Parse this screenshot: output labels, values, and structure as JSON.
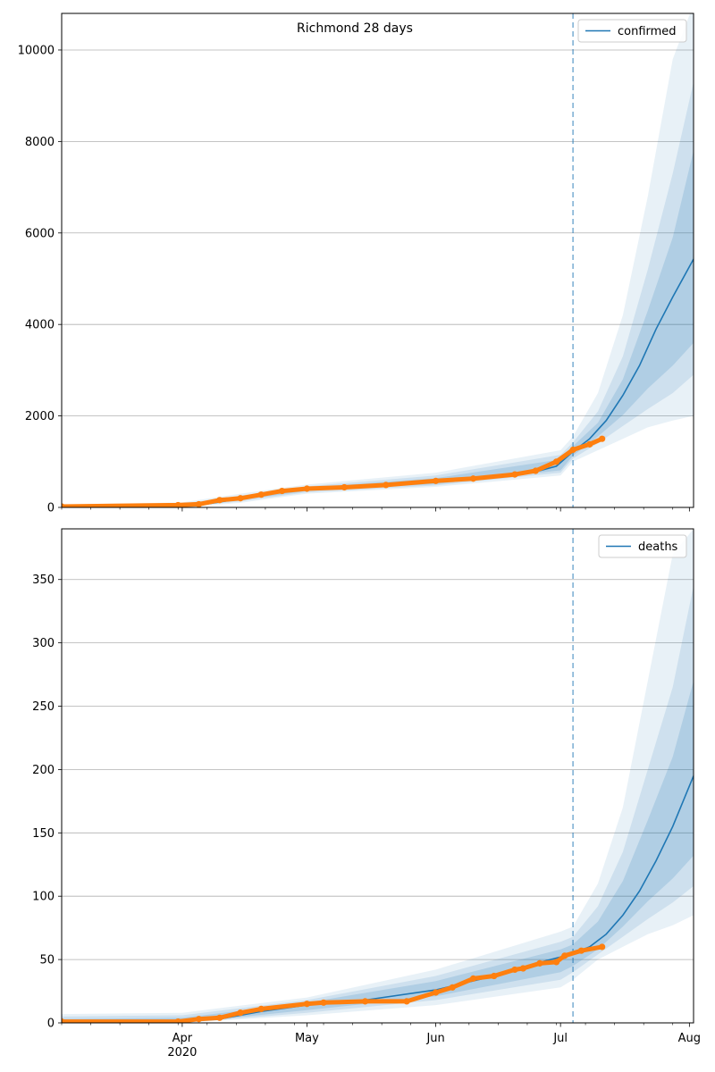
{
  "figure": {
    "title": "Richmond 28 days"
  },
  "colors": {
    "model": "#1f77b4",
    "observed": "#ff7f0e",
    "band": "#1f77b4",
    "grid": "#b0b0b0",
    "forecast_line": "#1f77b4"
  },
  "chart_data": [
    {
      "type": "line",
      "legend": {
        "label": "confirmed",
        "placement": "upper right"
      },
      "x_range": [
        "2020-03-03",
        "2020-08-02"
      ],
      "ylim": [
        0,
        10800
      ],
      "yticks": [
        0,
        2000,
        4000,
        6000,
        8000,
        10000
      ],
      "xticks": [
        {
          "date": "2020-04-01",
          "label": "Apr",
          "sublabel": "2020"
        },
        {
          "date": "2020-05-01",
          "label": "May"
        },
        {
          "date": "2020-06-01",
          "label": "Jun"
        },
        {
          "date": "2020-07-01",
          "label": "Jul"
        },
        {
          "date": "2020-08-01",
          "label": "Aug"
        }
      ],
      "forecast_start": "2020-07-04",
      "grid": true,
      "series": [
        {
          "name": "confirmed",
          "kind": "model",
          "x": [
            "2020-03-03",
            "2020-03-31",
            "2020-04-05",
            "2020-04-10",
            "2020-04-15",
            "2020-04-20",
            "2020-04-25",
            "2020-05-01",
            "2020-05-10",
            "2020-05-20",
            "2020-06-01",
            "2020-06-10",
            "2020-06-20",
            "2020-06-25",
            "2020-06-30",
            "2020-07-04",
            "2020-07-08",
            "2020-07-12",
            "2020-07-16",
            "2020-07-20",
            "2020-07-24",
            "2020-07-28",
            "2020-08-02"
          ],
          "y": [
            20,
            30,
            50,
            120,
            190,
            270,
            350,
            400,
            440,
            500,
            560,
            620,
            700,
            780,
            900,
            1220,
            1500,
            1900,
            2450,
            3100,
            3900,
            4600,
            5430
          ]
        },
        {
          "name": "",
          "kind": "observed",
          "x": [
            "2020-03-03",
            "2020-03-31",
            "2020-04-05",
            "2020-04-10",
            "2020-04-15",
            "2020-04-20",
            "2020-04-25",
            "2020-05-01",
            "2020-05-10",
            "2020-05-20",
            "2020-06-01",
            "2020-06-10",
            "2020-06-20",
            "2020-06-25",
            "2020-06-30",
            "2020-07-04",
            "2020-07-08",
            "2020-07-11"
          ],
          "y": [
            20,
            50,
            70,
            160,
            200,
            280,
            360,
            410,
            440,
            490,
            580,
            630,
            720,
            800,
            1000,
            1260,
            1380,
            1500
          ]
        }
      ],
      "bands": [
        {
          "x": [
            "2020-03-03",
            "2020-04-01",
            "2020-04-15",
            "2020-05-01",
            "2020-06-01",
            "2020-07-01",
            "2020-07-04",
            "2020-07-10",
            "2020-07-16",
            "2020-07-22",
            "2020-07-28",
            "2020-08-02"
          ],
          "lower": [
            0,
            0,
            100,
            300,
            450,
            700,
            1000,
            1250,
            1500,
            1750,
            1900,
            2000
          ],
          "upper": [
            60,
            110,
            300,
            500,
            760,
            1250,
            1550,
            2500,
            4200,
            6800,
            9800,
            11000
          ]
        },
        {
          "x": [
            "2020-03-03",
            "2020-04-01",
            "2020-04-15",
            "2020-05-01",
            "2020-06-01",
            "2020-07-01",
            "2020-07-04",
            "2020-07-10",
            "2020-07-16",
            "2020-07-22",
            "2020-07-28",
            "2020-08-02"
          ],
          "lower": [
            0,
            10,
            130,
            330,
            480,
            760,
            1070,
            1400,
            1780,
            2150,
            2500,
            2900
          ],
          "upper": [
            45,
            80,
            260,
            460,
            700,
            1150,
            1420,
            2100,
            3300,
            5200,
            7300,
            9300
          ]
        },
        {
          "x": [
            "2020-03-03",
            "2020-04-01",
            "2020-04-15",
            "2020-05-01",
            "2020-06-01",
            "2020-07-01",
            "2020-07-04",
            "2020-07-10",
            "2020-07-16",
            "2020-07-22",
            "2020-07-28",
            "2020-08-02"
          ],
          "lower": [
            5,
            20,
            160,
            360,
            510,
            810,
            1130,
            1550,
            2020,
            2600,
            3100,
            3600
          ],
          "upper": [
            35,
            60,
            220,
            430,
            640,
            1050,
            1340,
            1850,
            2800,
            4300,
            5900,
            7800
          ]
        }
      ]
    },
    {
      "type": "line",
      "legend": {
        "label": "deaths",
        "placement": "upper right"
      },
      "x_range": [
        "2020-03-03",
        "2020-08-02"
      ],
      "ylim": [
        0,
        390
      ],
      "yticks": [
        0,
        50,
        100,
        150,
        200,
        250,
        300,
        350
      ],
      "xticks": [
        {
          "date": "2020-04-01",
          "label": "Apr",
          "sublabel": "2020"
        },
        {
          "date": "2020-05-01",
          "label": "May"
        },
        {
          "date": "2020-06-01",
          "label": "Jun"
        },
        {
          "date": "2020-07-01",
          "label": "Jul"
        },
        {
          "date": "2020-08-01",
          "label": "Aug"
        }
      ],
      "forecast_start": "2020-07-04",
      "grid": true,
      "series": [
        {
          "name": "deaths",
          "kind": "model",
          "x": [
            "2020-03-03",
            "2020-03-31",
            "2020-04-10",
            "2020-04-20",
            "2020-05-01",
            "2020-05-15",
            "2020-06-01",
            "2020-06-15",
            "2020-06-25",
            "2020-07-01",
            "2020-07-04",
            "2020-07-08",
            "2020-07-12",
            "2020-07-16",
            "2020-07-20",
            "2020-07-24",
            "2020-07-28",
            "2020-08-02"
          ],
          "y": [
            1,
            1,
            3,
            9,
            14,
            18,
            26,
            37,
            47,
            52,
            55,
            60,
            70,
            85,
            104,
            128,
            155,
            195
          ]
        },
        {
          "name": "",
          "kind": "observed",
          "x": [
            "2020-03-03",
            "2020-03-31",
            "2020-04-05",
            "2020-04-10",
            "2020-04-15",
            "2020-04-20",
            "2020-05-01",
            "2020-05-05",
            "2020-05-15",
            "2020-05-25",
            "2020-06-01",
            "2020-06-05",
            "2020-06-10",
            "2020-06-15",
            "2020-06-20",
            "2020-06-22",
            "2020-06-26",
            "2020-06-30",
            "2020-07-02",
            "2020-07-06",
            "2020-07-11"
          ],
          "y": [
            1,
            1,
            3,
            4,
            8,
            11,
            15,
            16,
            17,
            17,
            24,
            28,
            35,
            37,
            42,
            43,
            47,
            48,
            53,
            57,
            60
          ]
        }
      ],
      "bands": [
        {
          "x": [
            "2020-03-03",
            "2020-04-01",
            "2020-05-01",
            "2020-06-01",
            "2020-07-01",
            "2020-07-04",
            "2020-07-10",
            "2020-07-16",
            "2020-07-22",
            "2020-07-28",
            "2020-08-02"
          ],
          "lower": [
            0,
            0,
            6,
            14,
            28,
            34,
            50,
            60,
            70,
            77,
            85
          ],
          "upper": [
            7,
            8,
            20,
            42,
            72,
            76,
            110,
            170,
            270,
            370,
            390
          ]
        },
        {
          "x": [
            "2020-03-03",
            "2020-04-01",
            "2020-05-01",
            "2020-06-01",
            "2020-07-01",
            "2020-07-04",
            "2020-07-10",
            "2020-07-16",
            "2020-07-22",
            "2020-07-28",
            "2020-08-02"
          ],
          "lower": [
            0,
            0,
            8,
            18,
            34,
            40,
            54,
            68,
            82,
            95,
            108
          ],
          "upper": [
            5,
            6,
            18,
            37,
            64,
            68,
            92,
            135,
            200,
            265,
            345
          ]
        },
        {
          "x": [
            "2020-03-03",
            "2020-04-01",
            "2020-05-01",
            "2020-06-01",
            "2020-07-01",
            "2020-07-04",
            "2020-07-10",
            "2020-07-16",
            "2020-07-22",
            "2020-07-28",
            "2020-08-02"
          ],
          "lower": [
            0,
            0,
            10,
            21,
            40,
            45,
            58,
            76,
            96,
            114,
            132
          ],
          "upper": [
            3,
            4,
            16,
            33,
            58,
            62,
            80,
            112,
            160,
            210,
            270
          ]
        }
      ]
    }
  ]
}
